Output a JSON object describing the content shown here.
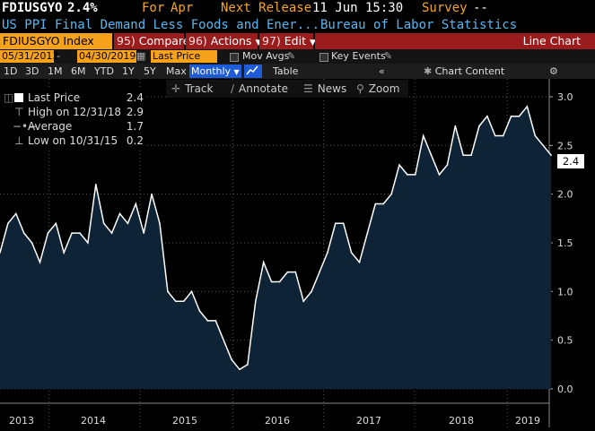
{
  "header": {
    "ticker": "FDIUSGYO",
    "value": "2.4%",
    "for_label": "For",
    "for_value": "Apr",
    "next_release_label": "Next Release",
    "next_release_value": "11 Jun 15:30",
    "survey_label": "Survey",
    "survey_value": "--",
    "description": "US PPI Final Demand Less Foods and Ener...",
    "source": "Bureau of Labor Statistics"
  },
  "toolbar": {
    "security": "FDIUSGYO Index",
    "compare_num": "95)",
    "compare_label": "Compare",
    "actions_num": "96)",
    "actions_label": "Actions",
    "edit_num": "97)",
    "edit_label": "Edit",
    "chart_type": "Line Chart"
  },
  "controls": {
    "start_date": "05/31/2013",
    "end_date": "04/30/2019",
    "field": "Last Price",
    "mov_avgs": "Mov Avgs",
    "key_events": "Key Events"
  },
  "periods": [
    "1D",
    "3D",
    "1M",
    "6M",
    "YTD",
    "1Y",
    "5Y",
    "Max"
  ],
  "frequency": "Monthly",
  "table_label": "Table",
  "chart_content_label": "Chart Content",
  "tools": {
    "track": "Track",
    "annotate": "Annotate",
    "news": "News",
    "zoom": "Zoom"
  },
  "legend": [
    {
      "label": "Last Price",
      "value": "2.4"
    },
    {
      "label": "High on 12/31/18",
      "value": "2.9"
    },
    {
      "label": "Average",
      "value": "1.7"
    },
    {
      "label": "Low on 10/31/15",
      "value": "0.2"
    }
  ],
  "last_value_label": "2.4",
  "colors": {
    "accent": "#f7a21b",
    "series": "#ffffff",
    "fill": "#0e2436",
    "button_red": "#9a1c1c",
    "active_blue": "#1e5bd7"
  },
  "chart_data": {
    "type": "area",
    "ylim": [
      0.0,
      3.0
    ],
    "y_ticks": [
      "0.0",
      "0.5",
      "1.0",
      "1.5",
      "2.0",
      "2.5",
      "3.0"
    ],
    "x_labels": [
      "2013",
      "2014",
      "2015",
      "2016",
      "2017",
      "2018",
      "2019"
    ],
    "x_start": "2013-05",
    "x_end": "2019-04",
    "values": [
      1.4,
      1.7,
      1.8,
      1.6,
      1.5,
      1.3,
      1.6,
      1.7,
      1.4,
      1.6,
      1.6,
      1.5,
      2.1,
      1.7,
      1.6,
      1.8,
      1.7,
      1.9,
      1.6,
      2.0,
      1.7,
      1.0,
      0.9,
      0.9,
      1.0,
      0.8,
      0.7,
      0.7,
      0.5,
      0.3,
      0.2,
      0.25,
      0.9,
      1.3,
      1.1,
      1.1,
      1.2,
      1.2,
      0.9,
      1.0,
      1.2,
      1.4,
      1.7,
      1.7,
      1.4,
      1.3,
      1.6,
      1.9,
      1.9,
      2.0,
      2.3,
      2.2,
      2.2,
      2.6,
      2.4,
      2.2,
      2.3,
      2.7,
      2.4,
      2.4,
      2.7,
      2.8,
      2.6,
      2.6,
      2.8,
      2.8,
      2.9,
      2.6,
      2.5,
      2.4
    ],
    "grid": true
  }
}
